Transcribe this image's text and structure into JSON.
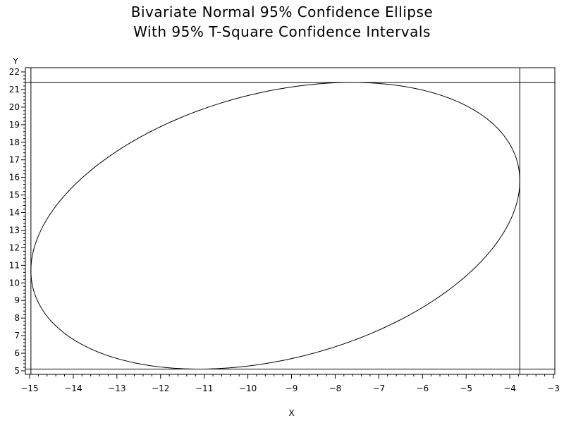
{
  "chart_data": {
    "type": "line",
    "title": "Bivariate Normal 95% Confidence Ellipse",
    "subtitle": "With 95% T-Square Confidence Intervals",
    "xlabel": "X",
    "ylabel": "Y",
    "xlim": [
      -15,
      -3
    ],
    "ylim": [
      5,
      22
    ],
    "xticks": [
      -15,
      -14,
      -13,
      -12,
      -11,
      -10,
      -9,
      -8,
      -7,
      -6,
      -5,
      -4,
      -3
    ],
    "yticks": [
      5,
      6,
      7,
      8,
      9,
      10,
      11,
      12,
      13,
      14,
      15,
      16,
      17,
      18,
      19,
      20,
      21,
      22
    ],
    "grid": false,
    "ellipse": {
      "center": [
        -9.3,
        13.25
      ],
      "x_range": [
        -14.97,
        -3.77
      ],
      "y_range": [
        5.1,
        21.4
      ],
      "leftmost_y": 10.8,
      "rightmost_y": 15.8,
      "topmost_x": -7.6,
      "bottommost_x": -11.0
    },
    "reference_lines": {
      "vertical_x": [
        -14.97,
        -3.77
      ],
      "horizontal_y": [
        5.1,
        21.4
      ]
    }
  }
}
